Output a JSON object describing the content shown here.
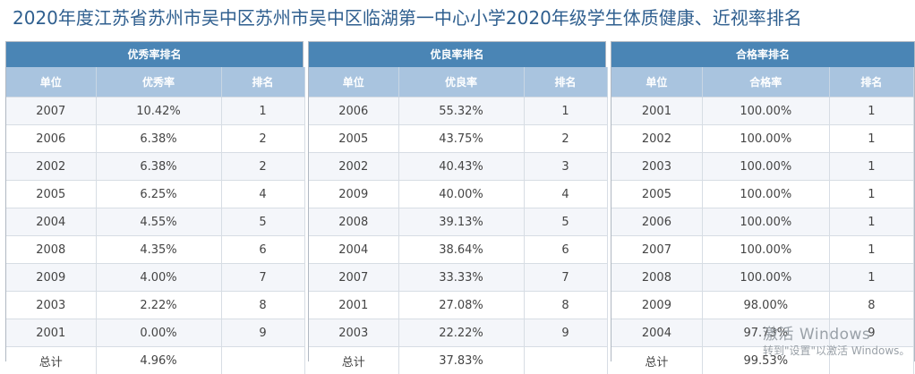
{
  "title": "2020年度江苏省苏州市吴中区苏州市吴中区临湖第一中心小学2020年级学生体质健康、近视率排名",
  "tables": [
    {
      "heading": "优秀率排名",
      "columns": [
        "单位",
        "优秀率",
        "排名"
      ],
      "rows": [
        [
          "2007",
          "10.42%",
          "1"
        ],
        [
          "2006",
          "6.38%",
          "2"
        ],
        [
          "2002",
          "6.38%",
          "2"
        ],
        [
          "2005",
          "6.25%",
          "4"
        ],
        [
          "2004",
          "4.55%",
          "5"
        ],
        [
          "2008",
          "4.35%",
          "6"
        ],
        [
          "2009",
          "4.00%",
          "7"
        ],
        [
          "2003",
          "2.22%",
          "8"
        ],
        [
          "2001",
          "0.00%",
          "9"
        ],
        [
          "总计",
          "4.96%",
          ""
        ]
      ]
    },
    {
      "heading": "优良率排名",
      "columns": [
        "单位",
        "优良率",
        "排名"
      ],
      "rows": [
        [
          "2006",
          "55.32%",
          "1"
        ],
        [
          "2005",
          "43.75%",
          "2"
        ],
        [
          "2002",
          "40.43%",
          "3"
        ],
        [
          "2009",
          "40.00%",
          "4"
        ],
        [
          "2008",
          "39.13%",
          "5"
        ],
        [
          "2004",
          "38.64%",
          "6"
        ],
        [
          "2007",
          "33.33%",
          "7"
        ],
        [
          "2001",
          "27.08%",
          "8"
        ],
        [
          "2003",
          "22.22%",
          "9"
        ],
        [
          "总计",
          "37.83%",
          ""
        ]
      ]
    },
    {
      "heading": "合格率排名",
      "columns": [
        "单位",
        "合格率",
        "排名"
      ],
      "rows": [
        [
          "2001",
          "100.00%",
          "1"
        ],
        [
          "2002",
          "100.00%",
          "1"
        ],
        [
          "2003",
          "100.00%",
          "1"
        ],
        [
          "2005",
          "100.00%",
          "1"
        ],
        [
          "2006",
          "100.00%",
          "1"
        ],
        [
          "2007",
          "100.00%",
          "1"
        ],
        [
          "2008",
          "100.00%",
          "1"
        ],
        [
          "2009",
          "98.00%",
          "8"
        ],
        [
          "2004",
          "97.73%",
          "9"
        ],
        [
          "总计",
          "99.53%",
          ""
        ]
      ]
    }
  ],
  "watermark": {
    "line1": "激活 Windows",
    "line2": "转到\"设置\"以激活 Windows。"
  },
  "colors": {
    "title": "#2f5f8f",
    "panel_header": "#4a85b5",
    "column_header": "#a9c4df",
    "row_stripe": "#f4f6fa"
  }
}
